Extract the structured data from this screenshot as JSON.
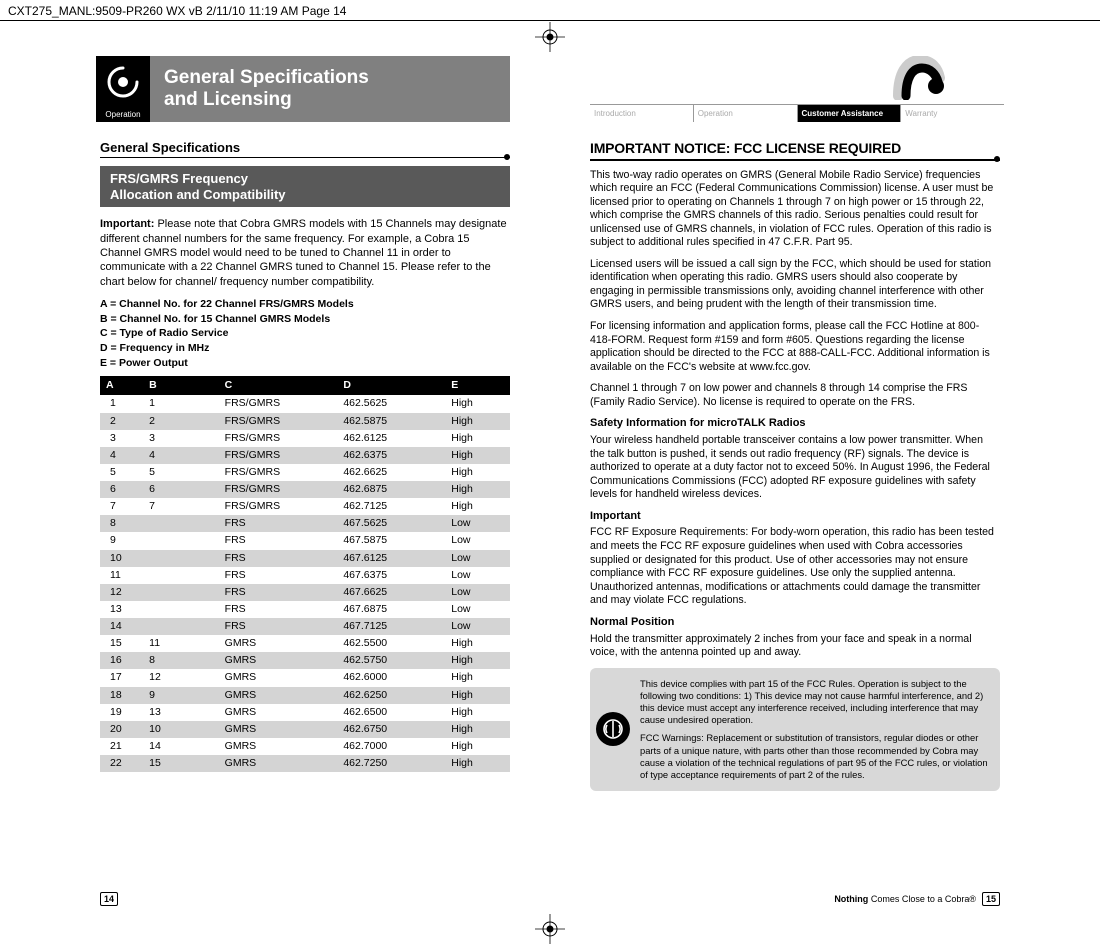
{
  "top_slug": "CXT275_MANL:9509-PR260 WX vB  2/11/10  11:19 AM  Page 14",
  "left_banner": {
    "tab_label": "Operation",
    "title_l1": "General Specifications",
    "title_l2": "and Licensing"
  },
  "right_tabs": {
    "items": [
      "Introduction",
      "Operation",
      "Customer Assistance",
      "Warranty"
    ],
    "active_index": 2
  },
  "left": {
    "heading": "General Specifications",
    "subbox_l1": "FRS/GMRS Frequency",
    "subbox_l2": "Allocation and Compatibility",
    "important_label": "Important:",
    "important_text": " Please note that Cobra GMRS models with 15 Channels may designate different channel numbers for the same frequency. For example, a Cobra 15 Channel GMRS model would need to be tuned to Channel 11 in order to communicate with a 22 Channel GMRS tuned to Channel 15. Please refer to the chart below for channel/ frequency number compatibility.",
    "legend": [
      "A = Channel No. for 22 Channel FRS/GMRS Models",
      "B = Channel No. for 15 Channel GMRS Models",
      "C = Type of Radio Service",
      "D = Frequency in MHz",
      "E = Power Output"
    ],
    "table": {
      "columns": [
        "A",
        "B",
        "C",
        "D",
        "E"
      ],
      "rows": [
        [
          "1",
          "1",
          "FRS/GMRS",
          "462.5625",
          "High"
        ],
        [
          "2",
          "2",
          "FRS/GMRS",
          "462.5875",
          "High"
        ],
        [
          "3",
          "3",
          "FRS/GMRS",
          "462.6125",
          "High"
        ],
        [
          "4",
          "4",
          "FRS/GMRS",
          "462.6375",
          "High"
        ],
        [
          "5",
          "5",
          "FRS/GMRS",
          "462.6625",
          "High"
        ],
        [
          "6",
          "6",
          "FRS/GMRS",
          "462.6875",
          "High"
        ],
        [
          "7",
          "7",
          "FRS/GMRS",
          "462.7125",
          "High"
        ],
        [
          "8",
          "",
          "FRS",
          "467.5625",
          "Low"
        ],
        [
          "9",
          "",
          "FRS",
          "467.5875",
          "Low"
        ],
        [
          "10",
          "",
          "FRS",
          "467.6125",
          "Low"
        ],
        [
          "11",
          "",
          "FRS",
          "467.6375",
          "Low"
        ],
        [
          "12",
          "",
          "FRS",
          "467.6625",
          "Low"
        ],
        [
          "13",
          "",
          "FRS",
          "467.6875",
          "Low"
        ],
        [
          "14",
          "",
          "FRS",
          "467.7125",
          "Low"
        ],
        [
          "15",
          "11",
          "GMRS",
          "462.5500",
          "High"
        ],
        [
          "16",
          "8",
          "GMRS",
          "462.5750",
          "High"
        ],
        [
          "17",
          "12",
          "GMRS",
          "462.6000",
          "High"
        ],
        [
          "18",
          "9",
          "GMRS",
          "462.6250",
          "High"
        ],
        [
          "19",
          "13",
          "GMRS",
          "462.6500",
          "High"
        ],
        [
          "20",
          "10",
          "GMRS",
          "462.6750",
          "High"
        ],
        [
          "21",
          "14",
          "GMRS",
          "462.7000",
          "High"
        ],
        [
          "22",
          "15",
          "GMRS",
          "462.7250",
          "High"
        ]
      ]
    }
  },
  "right": {
    "heading": "IMPORTANT NOTICE: FCC LICENSE REQUIRED",
    "p1": "This two-way radio operates on GMRS (General Mobile Radio Service) frequencies which require an FCC (Federal Communications Commission) license. A user must be licensed prior to operating on Channels 1 through 7 on high power or 15 through 22, which comprise the GMRS channels of this radio. Serious penalties could result for unlicensed use of GMRS channels, in violation of FCC rules. Operation of this radio is subject to additional rules specified in 47 C.F.R. Part 95.",
    "p2": "Licensed users will be issued a call sign by the FCC, which should be used for station identification when operating this radio. GMRS users should also cooperate by engaging in permissible transmissions only, avoiding channel interference with other GMRS users, and being prudent with the length of their transmission time.",
    "p3": "For licensing information and application forms, please call the FCC Hotline at 800-418-FORM. Request form #159 and form #605. Questions regarding the license application should be directed to the FCC at 888-CALL-FCC. Additional information is available on the FCC's website at www.fcc.gov.",
    "p4": "Channel 1 through 7 on low power and channels 8 through 14 comprise the FRS (Family Radio Service). No license is required to operate on the FRS.",
    "h_safety": "Safety Information for microTALK Radios",
    "p5": "Your wireless handheld portable transceiver contains a low power transmitter. When the talk button is pushed, it sends out radio frequency (RF) signals. The device is authorized to operate at a duty factor not to exceed 50%. In August 1996, the Federal Communications Commissions (FCC) adopted RF exposure guidelines with safety levels for handheld wireless devices.",
    "h_important": "Important",
    "p6": "FCC RF Exposure Requirements: For body-worn operation, this radio has been tested and meets the FCC RF exposure guidelines when used with Cobra accessories supplied or designated for this product. Use of other accessories may not ensure compliance with FCC RF exposure guidelines. Use only the supplied antenna. Unauthorized antennas, modifications or attachments could damage the transmitter and may violate FCC regulations.",
    "h_normal": "Normal Position",
    "p7": "Hold the transmitter approximately 2 inches from your face and speak in a normal voice, with the antenna pointed up and away.",
    "callout": {
      "p1": "This device complies with part 15 of the FCC Rules. Operation is subject to the following two conditions: 1) This device may not cause harmful interference, and 2) this device must accept any interference received, including interference that may cause undesired operation.",
      "p2": "FCC Warnings: Replacement or substitution of transistors, regular diodes or other parts of a unique nature, with parts other than those recommended by Cobra may cause a violation of the technical regulations of part 95 of the FCC rules, or violation of type acceptance requirements of part 2 of the rules."
    }
  },
  "footer": {
    "left_page": "14",
    "right_page": "15",
    "tagline_bold": "Nothing",
    "tagline_rest": " Comes Close to a Cobra®"
  }
}
